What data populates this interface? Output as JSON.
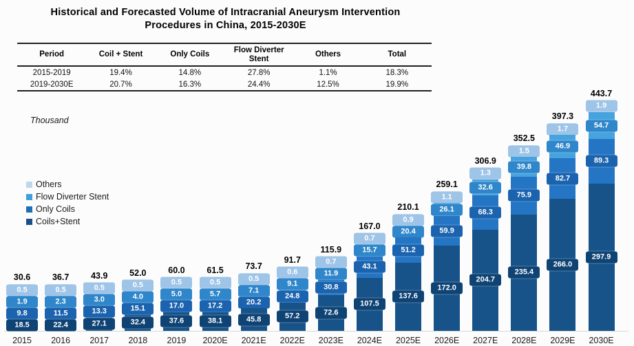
{
  "title": {
    "line1": "Historical and Forecasted Volume of Intracranial Aneurysm Intervention",
    "line2": "Procedures in China, 2015-2030E"
  },
  "table": {
    "headers": [
      "Period",
      "Coil + Stent",
      "Only Coils",
      "Flow Diverter Stent",
      "Others",
      "Total"
    ],
    "rows": [
      [
        "2015-2019",
        "19.4%",
        "14.8%",
        "27.8%",
        "1.1%",
        "18.3%"
      ],
      [
        "2019-2030E",
        "20.7%",
        "16.3%",
        "24.4%",
        "12.5%",
        "19.9%"
      ]
    ]
  },
  "unit_note": "Thousand",
  "legend": [
    {
      "label": "Others",
      "color": "#BDD7EE"
    },
    {
      "label": "Flow Diverter Stent",
      "color": "#41A0DC"
    },
    {
      "label": "Only Coils",
      "color": "#1F6FB8"
    },
    {
      "label": "Coils+Stent",
      "color": "#1A5089"
    }
  ],
  "chart_data": {
    "type": "bar",
    "stacked": true,
    "title": "Historical and Forecasted Volume of Intracranial Aneurysm Intervention Procedures in China, 2015-2030E",
    "ylabel": "Thousand",
    "grid": false,
    "legend_position": "left",
    "categories": [
      "2015",
      "2016",
      "2017",
      "2018",
      "2019",
      "2020E",
      "2021E",
      "2022E",
      "2023E",
      "2024E",
      "2025E",
      "2026E",
      "2027E",
      "2028E",
      "2029E",
      "2030E"
    ],
    "series": [
      {
        "name": "Coils+Stent",
        "bar_color": "#175389",
        "label_color": "#0F4374",
        "values": [
          18.5,
          22.4,
          27.1,
          32.4,
          37.6,
          38.1,
          45.8,
          57.2,
          72.6,
          107.5,
          137.6,
          172.0,
          204.7,
          235.4,
          266.0,
          297.9
        ]
      },
      {
        "name": "Only Coils",
        "bar_color": "#2475C4",
        "label_color": "#1B63AE",
        "values": [
          9.8,
          11.5,
          13.3,
          15.1,
          17.0,
          17.2,
          20.2,
          24.8,
          30.8,
          43.1,
          51.2,
          59.9,
          68.3,
          75.9,
          82.7,
          89.3
        ]
      },
      {
        "name": "Flow Diverter Stent",
        "bar_color": "#47A3DE",
        "label_color": "#2F86CA",
        "values": [
          1.9,
          2.3,
          3.0,
          4.0,
          5.0,
          5.7,
          7.1,
          9.1,
          11.9,
          15.7,
          20.4,
          26.1,
          32.6,
          39.8,
          46.9,
          54.7
        ]
      },
      {
        "name": "Others",
        "bar_color": "#C6DCF2",
        "label_color": "#9EC4E8",
        "values": [
          0.5,
          0.5,
          0.5,
          0.5,
          0.5,
          0.5,
          0.5,
          0.6,
          0.7,
          0.7,
          0.9,
          1.1,
          1.3,
          1.5,
          1.7,
          1.9
        ]
      }
    ],
    "totals": [
      30.6,
      36.7,
      43.9,
      52.0,
      60.0,
      61.5,
      73.7,
      91.7,
      115.9,
      167.0,
      210.1,
      259.1,
      306.9,
      352.5,
      397.3,
      443.7
    ]
  }
}
